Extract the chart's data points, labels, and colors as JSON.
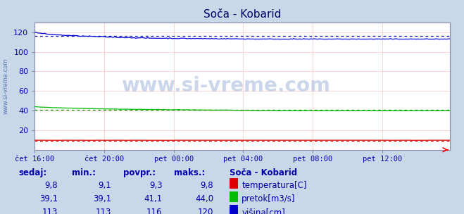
{
  "title": "Soča - Kobarid",
  "bg_color": "#c8d8e8",
  "plot_bg_color": "#ffffff",
  "grid_color": "#ffcccc",
  "x_ticks_labels": [
    "čet 16:00",
    "čet 20:00",
    "pet 00:00",
    "pet 04:00",
    "pet 08:00",
    "pet 12:00"
  ],
  "x_ticks_pos": [
    0,
    48,
    96,
    144,
    192,
    240
  ],
  "total_points": 288,
  "ylim": [
    0,
    130
  ],
  "yticks": [
    20,
    40,
    60,
    80,
    100,
    120
  ],
  "temp_avg": 9.3,
  "flow_avg": 41.1,
  "height_avg": 116,
  "watermark": "www.si-vreme.com",
  "left_label": "www.si-vreme.com",
  "color_temp": "#dd0000",
  "color_flow": "#00bb00",
  "color_height": "#0000dd",
  "color_avg_temp": "#cc0000",
  "color_avg_flow": "#009900",
  "color_avg_height": "#0000aa",
  "title_color": "#000066",
  "axis_label_color": "#0000aa",
  "table_color": "#0000aa",
  "legend_title_color": "#0000aa",
  "spine_color": "#8888aa",
  "table_headers": [
    "sedaj:",
    "min.:",
    "povpr.:",
    "maks.:"
  ],
  "legend_title": "Soča - Kobarid",
  "rows": [
    {
      "vals": [
        "9,8",
        "9,1",
        "9,3",
        "9,8"
      ],
      "color": "#dd0000",
      "label": "temperatura[C]"
    },
    {
      "vals": [
        "39,1",
        "39,1",
        "41,1",
        "44,0"
      ],
      "color": "#00bb00",
      "label": "pretok[m3/s]"
    },
    {
      "vals": [
        "113",
        "113",
        "116",
        "120"
      ],
      "color": "#0000cc",
      "label": "višina[cm]"
    }
  ]
}
